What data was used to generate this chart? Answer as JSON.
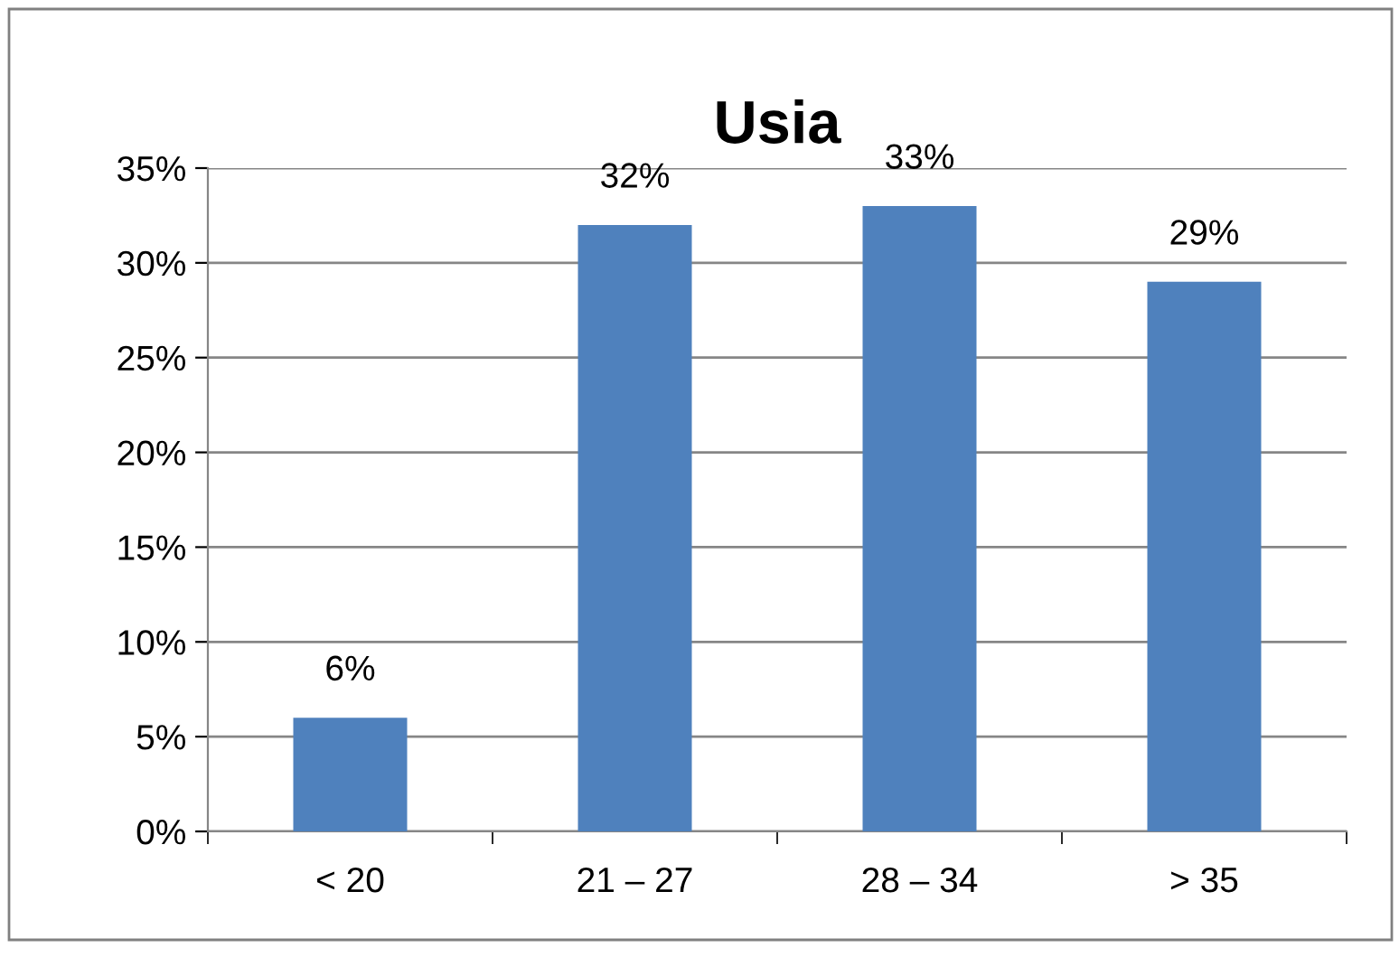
{
  "chart_data": {
    "type": "bar",
    "title": "Usia",
    "categories": [
      "< 20",
      "21 – 27",
      "28 – 34",
      "> 35"
    ],
    "values": [
      6,
      32,
      33,
      29
    ],
    "value_labels": [
      "6%",
      "32%",
      "33%",
      "29%"
    ],
    "color": "#4f81bd",
    "ylim": [
      0,
      35
    ],
    "yticks": [
      {
        "value": 0,
        "label": "0%"
      },
      {
        "value": 5,
        "label": "5%"
      },
      {
        "value": 10,
        "label": "10%"
      },
      {
        "value": 15,
        "label": "15%"
      },
      {
        "value": 20,
        "label": "20%"
      },
      {
        "value": 25,
        "label": "25%"
      },
      {
        "value": 30,
        "label": "30%"
      },
      {
        "value": 35,
        "label": "35%"
      }
    ],
    "grid": "y",
    "legend": false
  }
}
